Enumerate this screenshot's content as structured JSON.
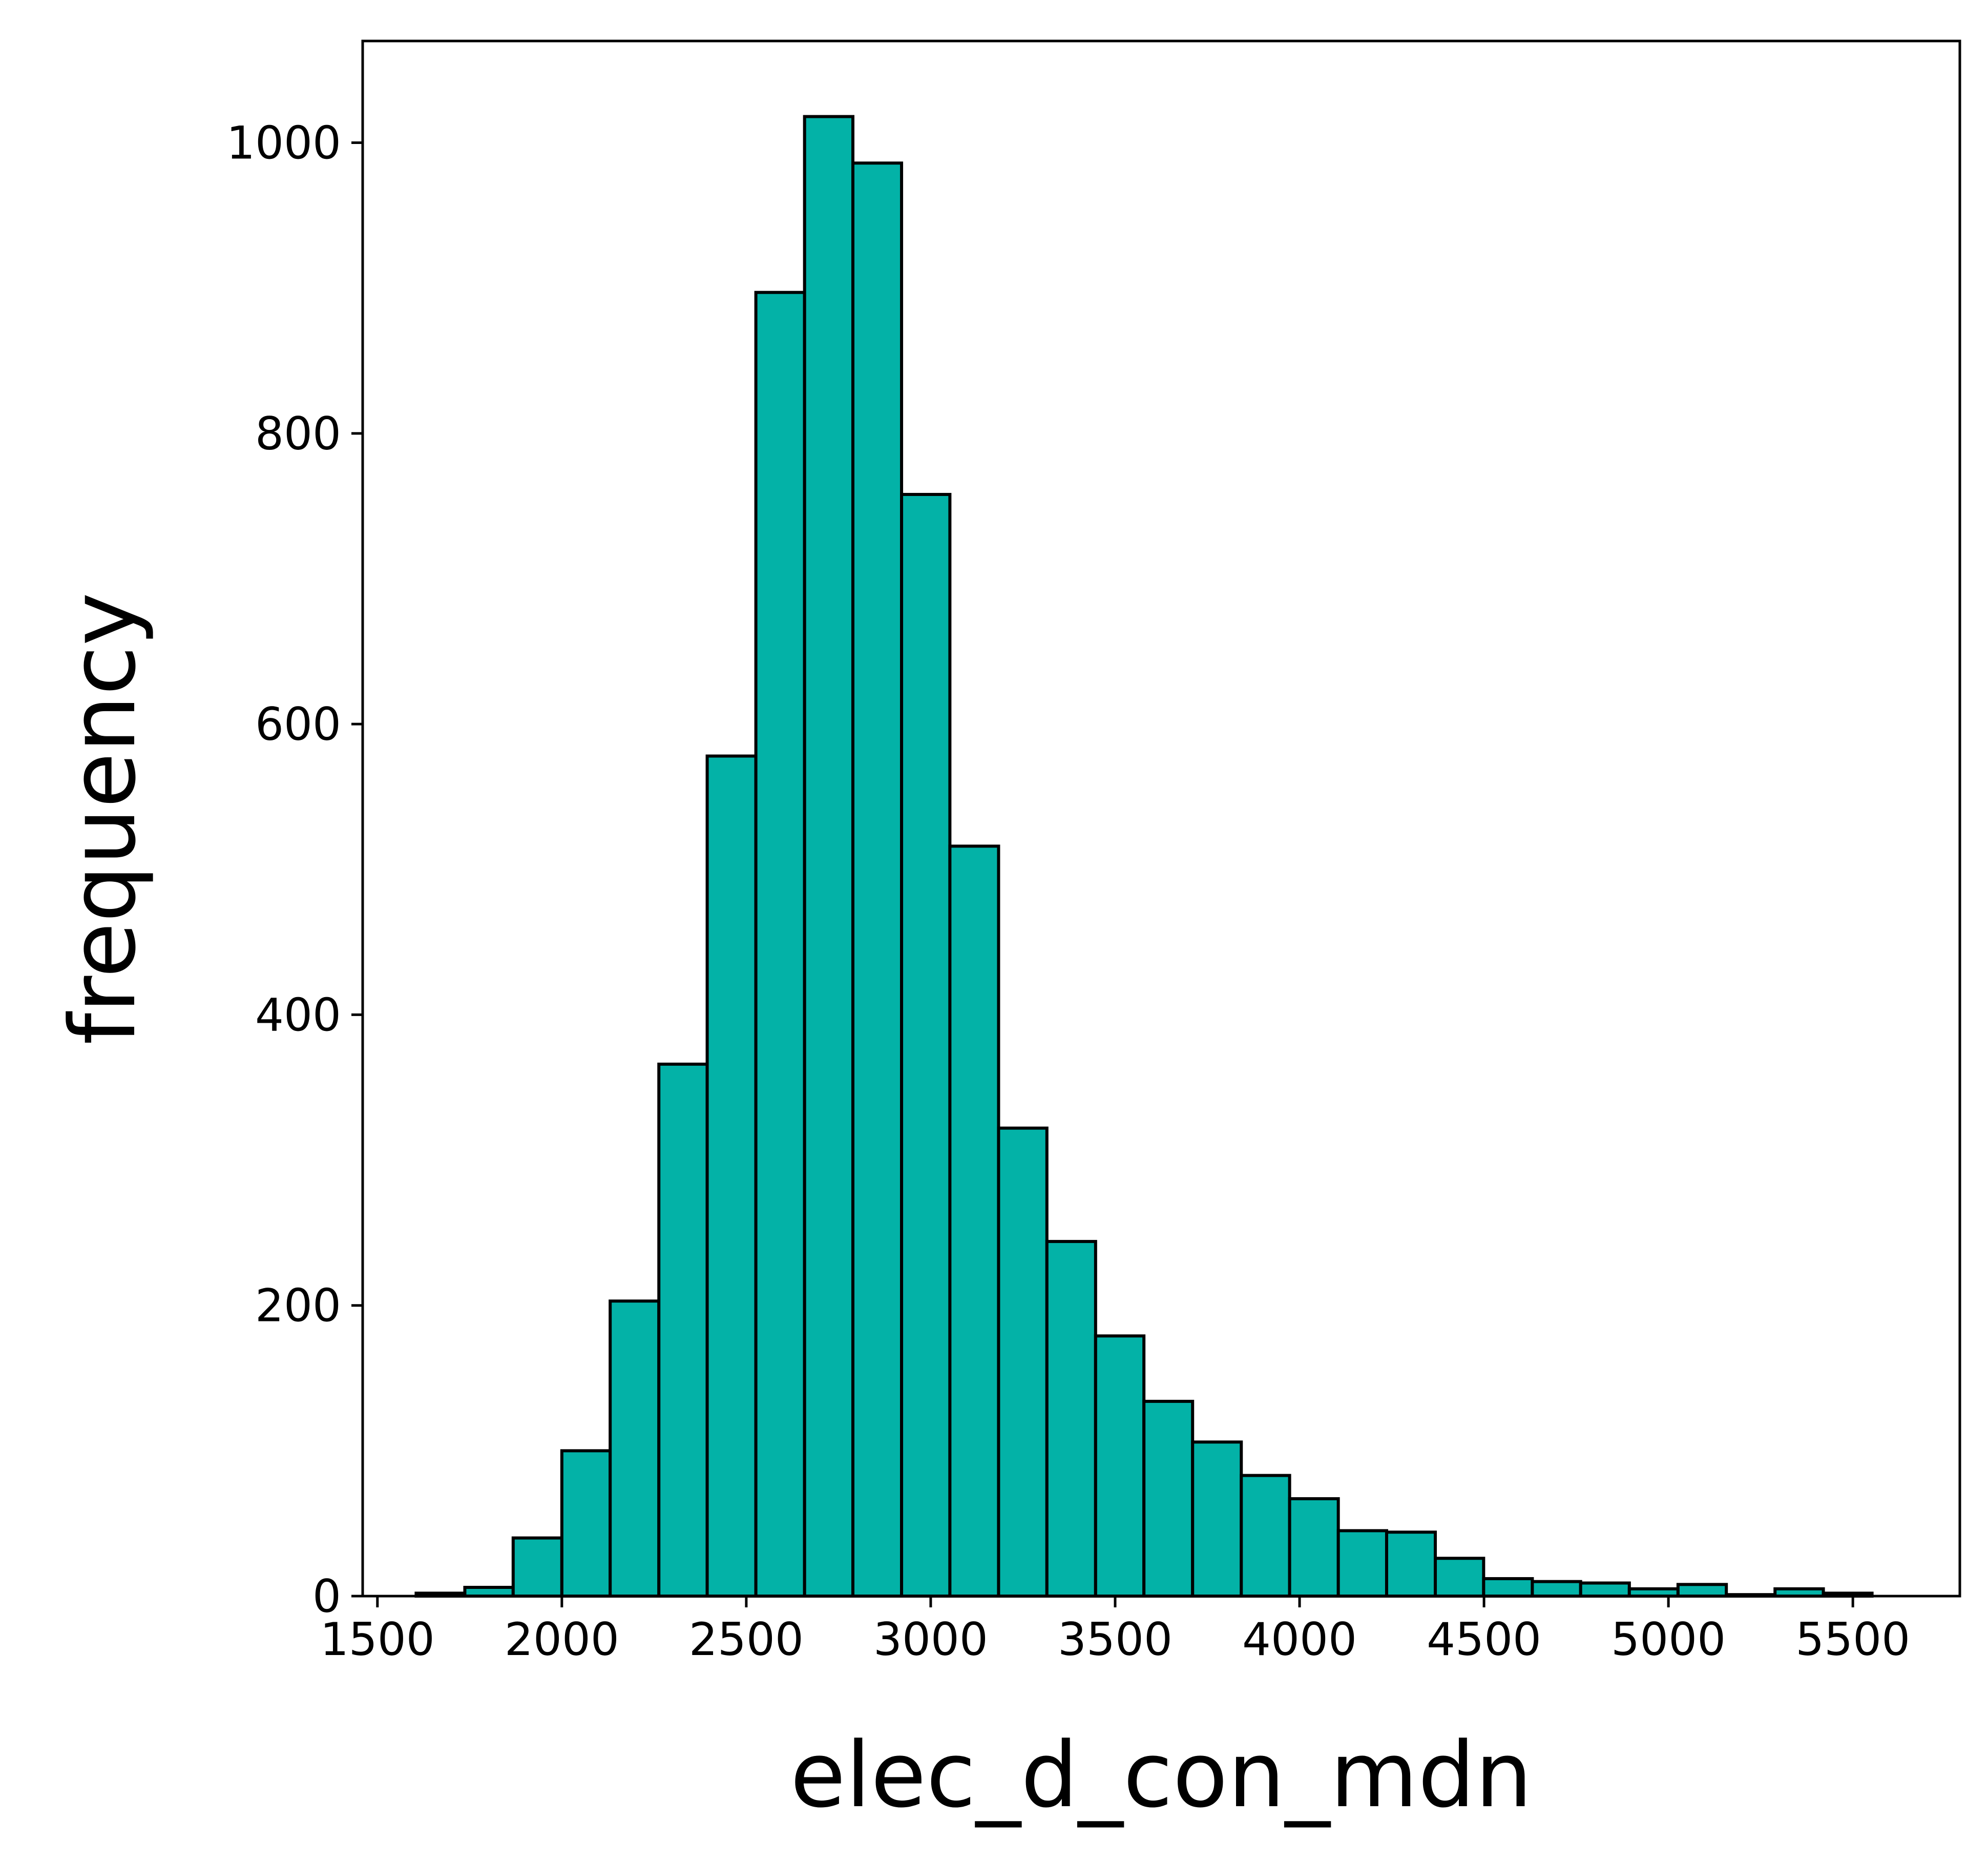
{
  "chart_data": {
    "type": "bar",
    "subtype": "histogram",
    "title": "",
    "xlabel": "elec_d_con_mdn",
    "ylabel": "frequency",
    "xlim": [
      1460,
      5790
    ],
    "ylim": [
      0,
      1070
    ],
    "x_ticks": [
      1500,
      2000,
      2500,
      3000,
      3500,
      4000,
      4500,
      5000,
      5500
    ],
    "y_ticks": [
      0,
      200,
      400,
      600,
      800,
      1000
    ],
    "bar_color": "#03b2a7",
    "edge_color": "#000000",
    "grid": false,
    "legend": "none",
    "bins": [
      {
        "x0": 1605,
        "x1": 1737,
        "count": 2
      },
      {
        "x0": 1737,
        "x1": 1868,
        "count": 6
      },
      {
        "x0": 1868,
        "x1": 2000,
        "count": 40
      },
      {
        "x0": 2000,
        "x1": 2131,
        "count": 100
      },
      {
        "x0": 2131,
        "x1": 2263,
        "count": 203
      },
      {
        "x0": 2263,
        "x1": 2394,
        "count": 366
      },
      {
        "x0": 2394,
        "x1": 2526,
        "count": 578
      },
      {
        "x0": 2526,
        "x1": 2658,
        "count": 897
      },
      {
        "x0": 2658,
        "x1": 2789,
        "count": 1018
      },
      {
        "x0": 2789,
        "x1": 2921,
        "count": 986
      },
      {
        "x0": 2921,
        "x1": 3052,
        "count": 758
      },
      {
        "x0": 3052,
        "x1": 3184,
        "count": 516
      },
      {
        "x0": 3184,
        "x1": 3315,
        "count": 322
      },
      {
        "x0": 3315,
        "x1": 3447,
        "count": 244
      },
      {
        "x0": 3447,
        "x1": 3578,
        "count": 179
      },
      {
        "x0": 3578,
        "x1": 3710,
        "count": 134
      },
      {
        "x0": 3710,
        "x1": 3842,
        "count": 106
      },
      {
        "x0": 3842,
        "x1": 3973,
        "count": 83
      },
      {
        "x0": 3973,
        "x1": 4105,
        "count": 67
      },
      {
        "x0": 4105,
        "x1": 4236,
        "count": 45
      },
      {
        "x0": 4236,
        "x1": 4368,
        "count": 44
      },
      {
        "x0": 4368,
        "x1": 4499,
        "count": 26
      },
      {
        "x0": 4499,
        "x1": 4631,
        "count": 12
      },
      {
        "x0": 4631,
        "x1": 4762,
        "count": 10
      },
      {
        "x0": 4762,
        "x1": 4894,
        "count": 9
      },
      {
        "x0": 4894,
        "x1": 5026,
        "count": 5
      },
      {
        "x0": 5026,
        "x1": 5157,
        "count": 8
      },
      {
        "x0": 5157,
        "x1": 5289,
        "count": 1
      },
      {
        "x0": 5289,
        "x1": 5420,
        "count": 5
      },
      {
        "x0": 5420,
        "x1": 5552,
        "count": 2
      }
    ]
  }
}
